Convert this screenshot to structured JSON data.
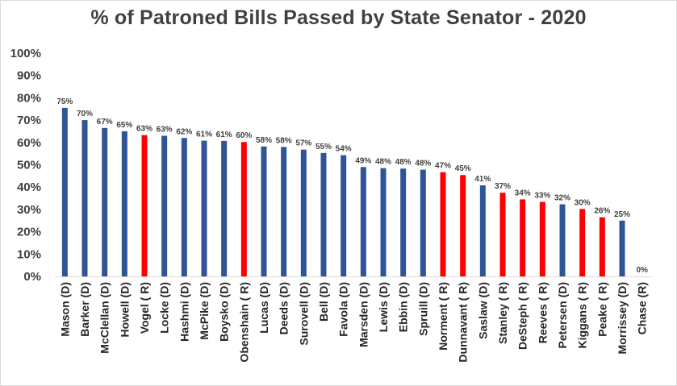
{
  "chart_data": {
    "type": "bar",
    "title": "% of Patroned Bills Passed by State Senator - 2020",
    "xlabel": "",
    "ylabel": "",
    "ylim": [
      0,
      100
    ],
    "y_ticks": [
      "0%",
      "10%",
      "20%",
      "30%",
      "40%",
      "50%",
      "60%",
      "70%",
      "80%",
      "90%",
      "100%"
    ],
    "grid": false,
    "categories": [
      "Mason (D)",
      "Barker (D)",
      "McClellan (D)",
      "Howell (D)",
      "Vogel ( R)",
      "Locke (D)",
      "Hashmi (D)",
      "McPike (D)",
      "Boysko (D)",
      "Obenshain ( R)",
      "Lucas (D)",
      "Deeds (D)",
      "Surovell (D)",
      "Bell (D)",
      "Favola (D)",
      "Marsden (D)",
      "Lewis (D)",
      "Ebbin (D)",
      "Spruill (D)",
      "Norment ( R)",
      "Dunnavant ( R)",
      "Saslaw (D)",
      "Stanley ( R)",
      "DeSteph ( R)",
      "Reeves ( R)",
      "Petersen (D)",
      "Kiggans ( R)",
      "Peake ( R)",
      "Morrissey (D)",
      "Chase (R)"
    ],
    "values": [
      75.5,
      70,
      66.5,
      65,
      63.3,
      63,
      62,
      60.8,
      60.7,
      60.2,
      58.2,
      58,
      56.8,
      55.3,
      54.3,
      49,
      48.5,
      48.3,
      47.8,
      46.7,
      45.4,
      40.8,
      37.5,
      34.5,
      33.4,
      32.3,
      30.2,
      26.5,
      25,
      0
    ],
    "data_labels": [
      "75%",
      "70%",
      "67%",
      "65%",
      "63%",
      "63%",
      "62%",
      "61%",
      "61%",
      "60%",
      "58%",
      "58%",
      "57%",
      "55%",
      "54%",
      "49%",
      "48%",
      "48%",
      "48%",
      "47%",
      "45%",
      "41%",
      "37%",
      "34%",
      "33%",
      "32%",
      "30%",
      "26%",
      "25%",
      "0%"
    ],
    "bar_colors": [
      "#2f5597",
      "#2f5597",
      "#2f5597",
      "#2f5597",
      "#ff0000",
      "#2f5597",
      "#2f5597",
      "#2f5597",
      "#2f5597",
      "#ff0000",
      "#2f5597",
      "#2f5597",
      "#2f5597",
      "#2f5597",
      "#2f5597",
      "#2f5597",
      "#2f5597",
      "#2f5597",
      "#2f5597",
      "#ff0000",
      "#ff0000",
      "#2f5597",
      "#ff0000",
      "#ff0000",
      "#ff0000",
      "#2f5597",
      "#ff0000",
      "#ff0000",
      "#2f5597",
      "#ff0000"
    ],
    "colors": {
      "democrat": "#2f5597",
      "republican": "#ff0000"
    }
  }
}
